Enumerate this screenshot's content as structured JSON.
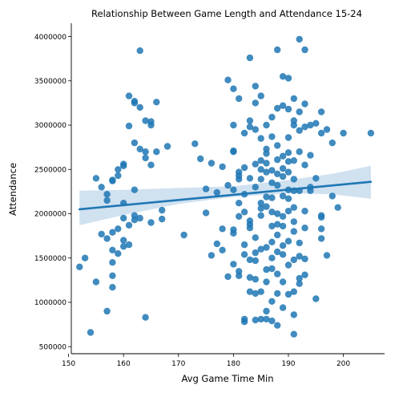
{
  "chart_data": {
    "type": "scatter",
    "title": "Relationship Between Game Length and Attendance 15-24",
    "xlabel": "Avg Game Time Min",
    "ylabel": "Attendance",
    "xlim": [
      150.5,
      207.5
    ],
    "ylim": [
      420000,
      4150000
    ],
    "xticks": [
      150,
      160,
      170,
      180,
      190,
      200
    ],
    "yticks": [
      500000,
      1000000,
      1500000,
      2000000,
      2500000,
      3000000,
      3500000,
      4000000
    ],
    "xtick_labels": [
      "150",
      "160",
      "170",
      "180",
      "190",
      "200"
    ],
    "ytick_labels": [
      "500000",
      "1000000",
      "1500000",
      "2000000",
      "2500000",
      "3000000",
      "3500000",
      "4000000"
    ],
    "colors": {
      "points": "#1f77b4",
      "regression": "#1f77b4",
      "band": "#aac8e3"
    },
    "regression": {
      "x": [
        152,
        205
      ],
      "y": [
        2050000,
        2360000
      ]
    },
    "confidence_band": {
      "x": [
        152,
        160,
        170,
        180,
        190,
        198,
        205
      ],
      "lower": [
        1870000,
        1985000,
        2110000,
        2190000,
        2230000,
        2220000,
        2170000
      ],
      "upper": [
        2260000,
        2270000,
        2290000,
        2310000,
        2380000,
        2450000,
        2540000
      ]
    },
    "points": [
      [
        152,
        1400000
      ],
      [
        153,
        1500000
      ],
      [
        154,
        660000
      ],
      [
        155,
        1230000
      ],
      [
        155,
        2400000
      ],
      [
        156,
        1770000
      ],
      [
        156,
        2300000
      ],
      [
        157,
        900000
      ],
      [
        157,
        2150000
      ],
      [
        157,
        2220000
      ],
      [
        157,
        1720000
      ],
      [
        158,
        1450000
      ],
      [
        158,
        1300000
      ],
      [
        158,
        1170000
      ],
      [
        158,
        1590000
      ],
      [
        158,
        1790000
      ],
      [
        158,
        2370000
      ],
      [
        158,
        2380000
      ],
      [
        159,
        2500000
      ],
      [
        159,
        2430000
      ],
      [
        159,
        1550000
      ],
      [
        159,
        1830000
      ],
      [
        160,
        1950000
      ],
      [
        160,
        2120000
      ],
      [
        160,
        2540000
      ],
      [
        160,
        2560000
      ],
      [
        160,
        1630000
      ],
      [
        160,
        1700000
      ],
      [
        161,
        1650000
      ],
      [
        161,
        3330000
      ],
      [
        161,
        2990000
      ],
      [
        161,
        1870000
      ],
      [
        162,
        3250000
      ],
      [
        162,
        3270000
      ],
      [
        162,
        2800000
      ],
      [
        162,
        2270000
      ],
      [
        162,
        1980000
      ],
      [
        162,
        1930000
      ],
      [
        163,
        3840000
      ],
      [
        163,
        3200000
      ],
      [
        163,
        2730000
      ],
      [
        163,
        1950000
      ],
      [
        164,
        3050000
      ],
      [
        164,
        2630000
      ],
      [
        164,
        2700000
      ],
      [
        164,
        830000
      ],
      [
        165,
        3040000
      ],
      [
        165,
        3000000
      ],
      [
        165,
        2550000
      ],
      [
        165,
        1900000
      ],
      [
        166,
        3260000
      ],
      [
        166,
        2700000
      ],
      [
        167,
        2040000
      ],
      [
        167,
        1940000
      ],
      [
        168,
        2760000
      ],
      [
        171,
        1760000
      ],
      [
        173,
        2790000
      ],
      [
        174,
        2620000
      ],
      [
        175,
        2280000
      ],
      [
        175,
        2010000
      ],
      [
        176,
        2570000
      ],
      [
        176,
        1530000
      ],
      [
        177,
        2240000
      ],
      [
        177,
        1660000
      ],
      [
        178,
        2530000
      ],
      [
        178,
        1590000
      ],
      [
        178,
        1830000
      ],
      [
        179,
        3510000
      ],
      [
        179,
        2320000
      ],
      [
        179,
        1290000
      ],
      [
        180,
        3410000
      ],
      [
        180,
        3000000
      ],
      [
        180,
        2710000
      ],
      [
        180,
        2700000
      ],
      [
        180,
        2270000
      ],
      [
        180,
        1820000
      ],
      [
        180,
        1780000
      ],
      [
        180,
        1430000
      ],
      [
        181,
        3300000
      ],
      [
        181,
        2390000
      ],
      [
        181,
        2120000
      ],
      [
        181,
        1970000
      ],
      [
        181,
        1350000
      ],
      [
        181,
        1300000
      ],
      [
        181,
        2470000
      ],
      [
        181,
        2430000
      ],
      [
        182,
        2910000
      ],
      [
        182,
        2520000
      ],
      [
        182,
        2020000
      ],
      [
        182,
        1650000
      ],
      [
        182,
        1540000
      ],
      [
        182,
        810000
      ],
      [
        182,
        780000
      ],
      [
        182,
        2220000
      ],
      [
        183,
        3760000
      ],
      [
        183,
        3050000
      ],
      [
        183,
        2980000
      ],
      [
        183,
        2400000
      ],
      [
        183,
        1920000
      ],
      [
        183,
        1840000
      ],
      [
        183,
        1480000
      ],
      [
        183,
        1280000
      ],
      [
        183,
        1120000
      ],
      [
        183,
        1880000
      ],
      [
        184,
        3440000
      ],
      [
        184,
        3250000
      ],
      [
        184,
        2950000
      ],
      [
        184,
        2560000
      ],
      [
        184,
        2300000
      ],
      [
        184,
        1730000
      ],
      [
        184,
        1560000
      ],
      [
        184,
        1260000
      ],
      [
        184,
        1100000
      ],
      [
        184,
        800000
      ],
      [
        184,
        1470000
      ],
      [
        185,
        3330000
      ],
      [
        185,
        2850000
      ],
      [
        185,
        2600000
      ],
      [
        185,
        2390000
      ],
      [
        185,
        2120000
      ],
      [
        185,
        1980000
      ],
      [
        185,
        1600000
      ],
      [
        185,
        1120000
      ],
      [
        185,
        810000
      ],
      [
        185,
        2060000
      ],
      [
        185,
        2500000
      ],
      [
        186,
        2680000
      ],
      [
        186,
        2570000
      ],
      [
        186,
        2470000
      ],
      [
        186,
        2190000
      ],
      [
        186,
        2080000
      ],
      [
        186,
        1620000
      ],
      [
        186,
        1370000
      ],
      [
        186,
        1230000
      ],
      [
        186,
        900000
      ],
      [
        186,
        810000
      ],
      [
        186,
        2730000
      ],
      [
        186,
        3000000
      ],
      [
        187,
        3090000
      ],
      [
        187,
        2870000
      ],
      [
        187,
        2490000
      ],
      [
        187,
        2350000
      ],
      [
        187,
        2020000
      ],
      [
        187,
        1860000
      ],
      [
        187,
        1680000
      ],
      [
        187,
        1380000
      ],
      [
        187,
        1010000
      ],
      [
        187,
        790000
      ],
      [
        187,
        2180000
      ],
      [
        187,
        1500000
      ],
      [
        188,
        3850000
      ],
      [
        188,
        3190000
      ],
      [
        188,
        2770000
      ],
      [
        188,
        2610000
      ],
      [
        188,
        2320000
      ],
      [
        188,
        2000000
      ],
      [
        188,
        1880000
      ],
      [
        188,
        1760000
      ],
      [
        188,
        1320000
      ],
      [
        188,
        1100000
      ],
      [
        188,
        740000
      ],
      [
        188,
        2450000
      ],
      [
        188,
        1570000
      ],
      [
        189,
        3550000
      ],
      [
        189,
        3220000
      ],
      [
        189,
        2650000
      ],
      [
        189,
        2510000
      ],
      [
        189,
        2200000
      ],
      [
        189,
        1970000
      ],
      [
        189,
        1860000
      ],
      [
        189,
        1540000
      ],
      [
        189,
        1230000
      ],
      [
        189,
        940000
      ],
      [
        189,
        2420000
      ],
      [
        189,
        1640000
      ],
      [
        190,
        3530000
      ],
      [
        190,
        3180000
      ],
      [
        190,
        2860000
      ],
      [
        190,
        2590000
      ],
      [
        190,
        2270000
      ],
      [
        190,
        2170000
      ],
      [
        190,
        2030000
      ],
      [
        190,
        1690000
      ],
      [
        190,
        1420000
      ],
      [
        190,
        1090000
      ],
      [
        190,
        2470000
      ],
      [
        190,
        2690000
      ],
      [
        191,
        3300000
      ],
      [
        191,
        3050000
      ],
      [
        191,
        3000000
      ],
      [
        191,
        2600000
      ],
      [
        191,
        2260000
      ],
      [
        191,
        2070000
      ],
      [
        191,
        1910000
      ],
      [
        191,
        1800000
      ],
      [
        191,
        1480000
      ],
      [
        191,
        1120000
      ],
      [
        191,
        860000
      ],
      [
        191,
        640000
      ],
      [
        191,
        2390000
      ],
      [
        192,
        3970000
      ],
      [
        192,
        3150000
      ],
      [
        192,
        2940000
      ],
      [
        192,
        2700000
      ],
      [
        192,
        2260000
      ],
      [
        192,
        1670000
      ],
      [
        192,
        1520000
      ],
      [
        192,
        1270000
      ],
      [
        192,
        1210000
      ],
      [
        193,
        3850000
      ],
      [
        193,
        3240000
      ],
      [
        193,
        2980000
      ],
      [
        193,
        2550000
      ],
      [
        193,
        2030000
      ],
      [
        193,
        1840000
      ],
      [
        193,
        1490000
      ],
      [
        193,
        1310000
      ],
      [
        194,
        2300000
      ],
      [
        194,
        2260000
      ],
      [
        194,
        3000000
      ],
      [
        194,
        2660000
      ],
      [
        195,
        3020000
      ],
      [
        195,
        2400000
      ],
      [
        195,
        1040000
      ],
      [
        196,
        3150000
      ],
      [
        196,
        2910000
      ],
      [
        196,
        1980000
      ],
      [
        196,
        1960000
      ],
      [
        196,
        1830000
      ],
      [
        196,
        1720000
      ],
      [
        197,
        2950000
      ],
      [
        197,
        1530000
      ],
      [
        198,
        2800000
      ],
      [
        198,
        2200000
      ],
      [
        199,
        2070000
      ],
      [
        200,
        2910000
      ],
      [
        205,
        2910000
      ]
    ]
  }
}
